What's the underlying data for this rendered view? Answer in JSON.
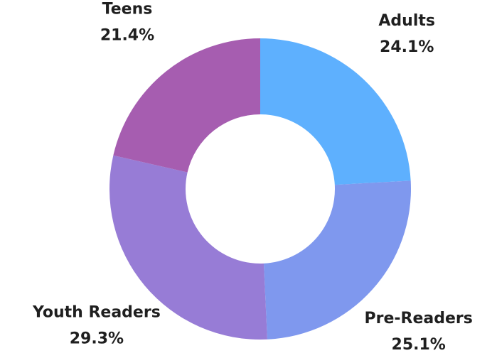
{
  "chart_data": {
    "type": "donut",
    "categories": [
      "Adults",
      "Pre-Readers",
      "Youth Readers",
      "Teens"
    ],
    "values": [
      24.1,
      25.1,
      29.3,
      21.4
    ],
    "value_labels": [
      "24.1%",
      "25.1%",
      "29.3%",
      "21.4%"
    ],
    "colors": [
      "#5eb0fe",
      "#7f98ee",
      "#977cd6",
      "#a65db0"
    ]
  }
}
